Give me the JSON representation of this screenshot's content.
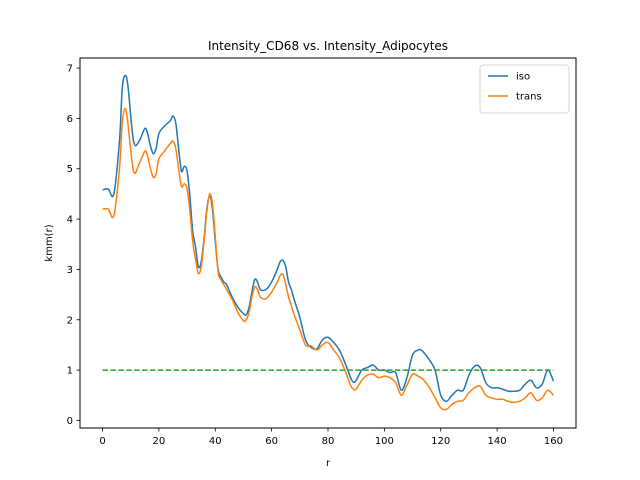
{
  "chart_data": {
    "type": "line",
    "title": "Intensity_CD68 vs. Intensity_Adipocytes",
    "xlabel": "r",
    "ylabel": "kmm(r)",
    "xlim": [
      -8,
      168
    ],
    "ylim": [
      -0.15,
      7.2
    ],
    "x_ticks": [
      0,
      20,
      40,
      60,
      80,
      100,
      120,
      140,
      160
    ],
    "y_ticks": [
      0,
      1,
      2,
      3,
      4,
      5,
      6,
      7
    ],
    "grid": false,
    "legend_position": "top-right",
    "series": [
      {
        "name": "iso",
        "color": "#1f77b4",
        "style": "solid",
        "x": [
          0,
          2,
          4,
          6,
          7,
          8,
          9,
          11,
          13,
          15,
          16,
          17,
          18,
          19,
          20,
          22,
          24,
          25,
          26,
          27,
          28,
          29,
          30,
          31,
          32,
          33,
          34,
          35,
          36,
          37,
          38,
          39,
          40,
          41,
          42,
          43,
          44,
          46,
          48,
          50,
          51,
          52,
          53,
          54,
          55,
          56,
          58,
          60,
          62,
          63,
          64,
          65,
          66,
          67,
          68,
          70,
          72,
          74,
          76,
          78,
          80,
          82,
          84,
          86,
          88,
          89,
          90,
          92,
          94,
          96,
          98,
          100,
          102,
          104,
          106,
          108,
          110,
          112,
          113,
          114,
          116,
          118,
          120,
          122,
          124,
          126,
          128,
          130,
          132,
          134,
          136,
          138,
          140,
          142,
          144,
          146,
          148,
          150,
          152,
          154,
          156,
          158,
          160
        ],
        "y": [
          4.58,
          4.6,
          4.5,
          5.55,
          6.6,
          6.85,
          6.65,
          5.55,
          5.55,
          5.8,
          5.7,
          5.45,
          5.3,
          5.4,
          5.7,
          5.85,
          5.95,
          6.05,
          5.9,
          5.4,
          4.95,
          5.05,
          4.95,
          4.45,
          3.75,
          3.45,
          3.05,
          3.15,
          3.6,
          4.2,
          4.45,
          4.2,
          3.55,
          3.0,
          2.85,
          2.75,
          2.7,
          2.45,
          2.25,
          2.12,
          2.1,
          2.25,
          2.55,
          2.8,
          2.75,
          2.6,
          2.6,
          2.75,
          3.0,
          3.15,
          3.18,
          3.05,
          2.75,
          2.6,
          2.4,
          2.05,
          1.6,
          1.45,
          1.42,
          1.6,
          1.65,
          1.55,
          1.4,
          1.15,
          0.85,
          0.76,
          0.8,
          1.0,
          1.05,
          1.1,
          1.0,
          1.0,
          0.95,
          0.95,
          0.6,
          0.85,
          1.3,
          1.4,
          1.4,
          1.35,
          1.2,
          1.0,
          0.5,
          0.38,
          0.5,
          0.6,
          0.6,
          0.9,
          1.08,
          1.05,
          0.75,
          0.65,
          0.65,
          0.62,
          0.58,
          0.58,
          0.6,
          0.72,
          0.8,
          0.65,
          0.72,
          1.0,
          0.78
        ]
      },
      {
        "name": "trans",
        "color": "#ff7f0e",
        "style": "solid",
        "x": [
          0,
          2,
          4,
          6,
          7,
          8,
          9,
          11,
          13,
          15,
          16,
          17,
          18,
          19,
          20,
          22,
          24,
          25,
          26,
          27,
          28,
          29,
          30,
          31,
          32,
          33,
          34,
          35,
          36,
          37,
          38,
          39,
          40,
          41,
          42,
          43,
          44,
          46,
          48,
          50,
          51,
          52,
          53,
          54,
          55,
          56,
          58,
          60,
          62,
          63,
          64,
          65,
          66,
          67,
          68,
          70,
          72,
          74,
          76,
          78,
          80,
          82,
          84,
          86,
          88,
          89,
          90,
          92,
          94,
          96,
          98,
          100,
          102,
          104,
          106,
          108,
          110,
          112,
          113,
          114,
          116,
          118,
          120,
          122,
          124,
          126,
          128,
          130,
          132,
          134,
          136,
          138,
          140,
          142,
          144,
          146,
          148,
          150,
          152,
          154,
          156,
          158,
          160
        ],
        "y": [
          4.2,
          4.2,
          4.07,
          5.0,
          5.9,
          6.2,
          5.9,
          4.95,
          5.1,
          5.35,
          5.25,
          5.0,
          4.83,
          4.9,
          5.2,
          5.35,
          5.5,
          5.55,
          5.4,
          5.0,
          4.65,
          4.7,
          4.6,
          4.15,
          3.55,
          3.2,
          2.92,
          3.05,
          3.55,
          4.15,
          4.5,
          4.3,
          3.65,
          2.95,
          2.8,
          2.7,
          2.6,
          2.4,
          2.15,
          1.98,
          2.0,
          2.15,
          2.45,
          2.65,
          2.6,
          2.45,
          2.42,
          2.55,
          2.75,
          2.88,
          2.9,
          2.7,
          2.45,
          2.28,
          2.1,
          1.8,
          1.5,
          1.48,
          1.4,
          1.5,
          1.55,
          1.4,
          1.25,
          1.0,
          0.7,
          0.62,
          0.62,
          0.8,
          0.9,
          0.92,
          0.85,
          0.88,
          0.85,
          0.75,
          0.5,
          0.7,
          0.92,
          0.88,
          0.85,
          0.8,
          0.65,
          0.45,
          0.25,
          0.22,
          0.32,
          0.38,
          0.4,
          0.55,
          0.65,
          0.68,
          0.5,
          0.45,
          0.42,
          0.42,
          0.38,
          0.36,
          0.38,
          0.45,
          0.55,
          0.4,
          0.45,
          0.6,
          0.5
        ]
      },
      {
        "name": "",
        "color": "#2ca02c",
        "style": "dashed",
        "x": [
          0,
          160
        ],
        "y": [
          1,
          1
        ]
      }
    ]
  }
}
